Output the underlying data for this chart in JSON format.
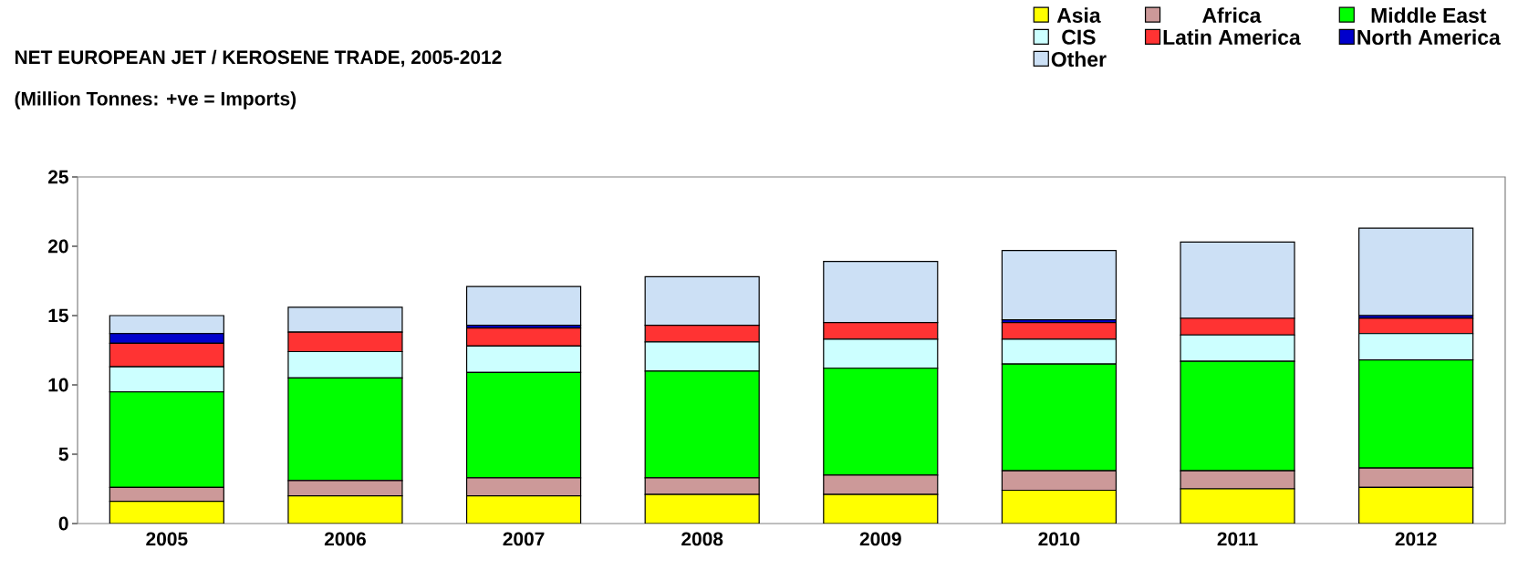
{
  "chart_data": {
    "type": "bar",
    "stacked": true,
    "title": "NET EUROPEAN JET / KEROSENE TRADE, 2005-2012",
    "subtitle": "(Million Tonnes: +ve = Imports)",
    "categories": [
      "2005",
      "2006",
      "2007",
      "2008",
      "2009",
      "2010",
      "2011",
      "2012"
    ],
    "series": [
      {
        "name": "Asia",
        "color": "#ffff00",
        "values": [
          1.6,
          2.0,
          2.0,
          2.1,
          2.1,
          2.4,
          2.5,
          2.6
        ]
      },
      {
        "name": "Africa",
        "color": "#cc9999",
        "values": [
          1.0,
          1.1,
          1.3,
          1.2,
          1.4,
          1.4,
          1.3,
          1.4
        ]
      },
      {
        "name": "Middle East",
        "color": "#00ff00",
        "values": [
          6.9,
          7.4,
          7.6,
          7.7,
          7.7,
          7.7,
          7.9,
          7.8
        ]
      },
      {
        "name": "CIS",
        "color": "#ccffff",
        "values": [
          1.8,
          1.9,
          1.9,
          2.1,
          2.1,
          1.8,
          1.9,
          1.9
        ]
      },
      {
        "name": "Latin America",
        "color": "#ff3333",
        "values": [
          1.7,
          1.4,
          1.3,
          1.2,
          1.2,
          1.2,
          1.2,
          1.1
        ]
      },
      {
        "name": "North America",
        "color": "#0000cc",
        "values": [
          0.7,
          0,
          0.2,
          0,
          0,
          0.2,
          0,
          0.2
        ]
      },
      {
        "name": "Other",
        "color": "#cce0f5",
        "values": [
          1.3,
          1.8,
          2.8,
          3.5,
          4.4,
          5.0,
          5.5,
          6.3
        ]
      }
    ],
    "ylim": [
      0,
      25
    ],
    "yticks": [
      0,
      5,
      10,
      15,
      20,
      25
    ],
    "grid": false,
    "legend": "top right"
  }
}
